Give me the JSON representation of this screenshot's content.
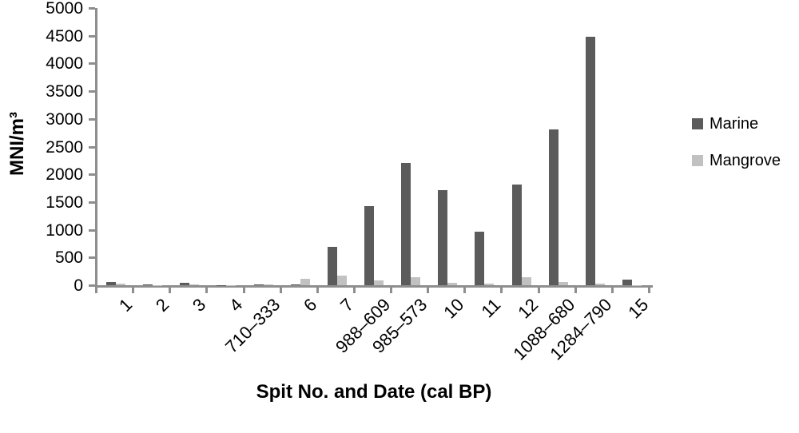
{
  "chart_data": {
    "type": "bar",
    "title": "",
    "xlabel": "Spit No. and Date (cal BP)",
    "ylabel": "MNI/m³",
    "ylim": [
      0,
      5000
    ],
    "ytick_step": 500,
    "yticks": [
      0,
      500,
      1000,
      1500,
      2000,
      2500,
      3000,
      3500,
      4000,
      4500,
      5000
    ],
    "categories": [
      "1",
      "2",
      "3",
      "4",
      "710–333",
      "6",
      "7",
      "988–609",
      "985–573",
      "10",
      "11",
      "12",
      "1088–680",
      "1284–790",
      "15"
    ],
    "series": [
      {
        "name": "Marine",
        "color": "#5b5b5b",
        "values": [
          60,
          10,
          50,
          5,
          15,
          10,
          690,
          1430,
          2200,
          1720,
          960,
          1820,
          2810,
          4480,
          100
        ]
      },
      {
        "name": "Mangrove",
        "color": "#c1c1c1",
        "values": [
          25,
          5,
          15,
          5,
          10,
          115,
          180,
          90,
          150,
          50,
          25,
          140,
          60,
          25,
          5
        ]
      }
    ],
    "legend_position": "right",
    "grid": false,
    "axis_color": "#8e8e8e",
    "text_color": "#000000"
  }
}
